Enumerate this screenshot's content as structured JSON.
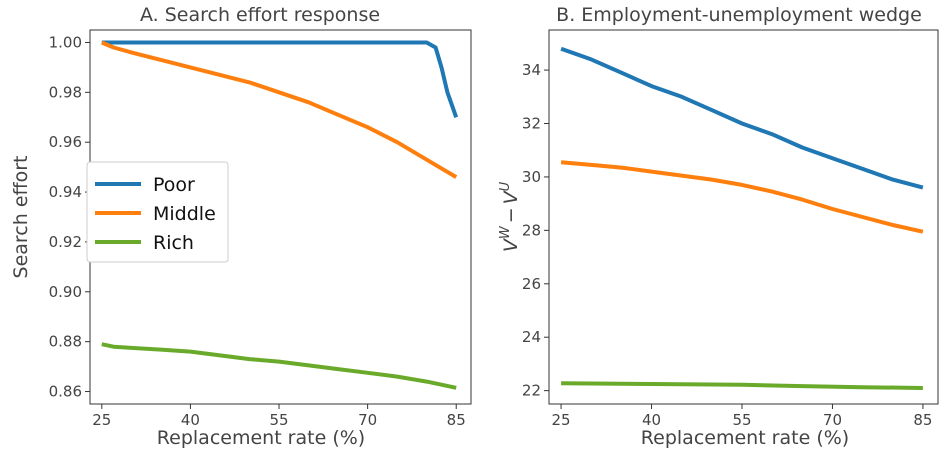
{
  "colors": {
    "poor": "#1f77b4",
    "middle": "#ff7f0e",
    "rich": "#6aaa2a",
    "axis": "#333333",
    "text": "#444444"
  },
  "chart_data": [
    {
      "type": "line",
      "title": "A. Search effort response",
      "xlabel": "Replacement rate (%)",
      "ylabel": "Search effort",
      "xlim": [
        23,
        87.5
      ],
      "ylim": [
        0.855,
        1.005
      ],
      "xticks": [
        25,
        40,
        55,
        70,
        85
      ],
      "yticks": [
        0.86,
        0.88,
        0.9,
        0.92,
        0.94,
        0.96,
        0.98,
        1.0
      ],
      "ytick_labels": [
        "0.86",
        "0.88",
        "0.90",
        "0.92",
        "0.94",
        "0.96",
        "0.98",
        "1.00"
      ],
      "grid": false,
      "legend": "center-left",
      "series": [
        {
          "name": "Poor",
          "color_key": "poor",
          "x": [
            25,
            30,
            40,
            50,
            60,
            70,
            80,
            81.5,
            82.5,
            83.5,
            85
          ],
          "y": [
            1.0,
            1.0,
            1.0,
            1.0,
            1.0,
            1.0,
            1.0,
            0.998,
            0.99,
            0.98,
            0.97
          ]
        },
        {
          "name": "Middle",
          "color_key": "middle",
          "x": [
            25,
            27,
            30,
            35,
            40,
            45,
            50,
            55,
            60,
            65,
            70,
            75,
            80,
            85
          ],
          "y": [
            1.0,
            0.998,
            0.996,
            0.993,
            0.99,
            0.987,
            0.984,
            0.98,
            0.976,
            0.971,
            0.966,
            0.96,
            0.953,
            0.946
          ]
        },
        {
          "name": "Rich",
          "color_key": "rich",
          "x": [
            25,
            27,
            30,
            35,
            40,
            45,
            50,
            55,
            60,
            65,
            70,
            75,
            80,
            85
          ],
          "y": [
            0.879,
            0.878,
            0.8775,
            0.8768,
            0.876,
            0.8745,
            0.873,
            0.872,
            0.8705,
            0.869,
            0.8675,
            0.866,
            0.864,
            0.8615
          ]
        }
      ]
    },
    {
      "type": "line",
      "title": "B. Employment-unemployment wedge",
      "xlabel": "Replacement rate (%)",
      "ylabel_base": "V",
      "ylabel_sup1": "W",
      "ylabel_minus": "−",
      "ylabel_sup2": "U",
      "xlim": [
        23,
        87.5
      ],
      "ylim": [
        21.5,
        35.5
      ],
      "xticks": [
        25,
        40,
        55,
        70,
        85
      ],
      "yticks": [
        22,
        24,
        26,
        28,
        30,
        32,
        34
      ],
      "ytick_labels": [
        "22",
        "24",
        "26",
        "28",
        "30",
        "32",
        "34"
      ],
      "grid": false,
      "series": [
        {
          "name": "Poor",
          "color_key": "poor",
          "x": [
            25,
            30,
            35,
            40,
            45,
            50,
            55,
            60,
            65,
            70,
            75,
            80,
            85
          ],
          "y": [
            34.8,
            34.4,
            33.9,
            33.4,
            33.0,
            32.5,
            32.0,
            31.6,
            31.1,
            30.7,
            30.3,
            29.9,
            29.6
          ]
        },
        {
          "name": "Middle",
          "color_key": "middle",
          "x": [
            25,
            30,
            35,
            40,
            45,
            50,
            55,
            60,
            65,
            70,
            75,
            80,
            85
          ],
          "y": [
            30.55,
            30.45,
            30.35,
            30.2,
            30.05,
            29.9,
            29.7,
            29.45,
            29.15,
            28.8,
            28.5,
            28.2,
            27.95
          ]
        },
        {
          "name": "Rich",
          "color_key": "rich",
          "x": [
            25,
            35,
            45,
            55,
            65,
            75,
            85
          ],
          "y": [
            22.28,
            22.26,
            22.24,
            22.22,
            22.17,
            22.13,
            22.1
          ]
        }
      ]
    }
  ]
}
